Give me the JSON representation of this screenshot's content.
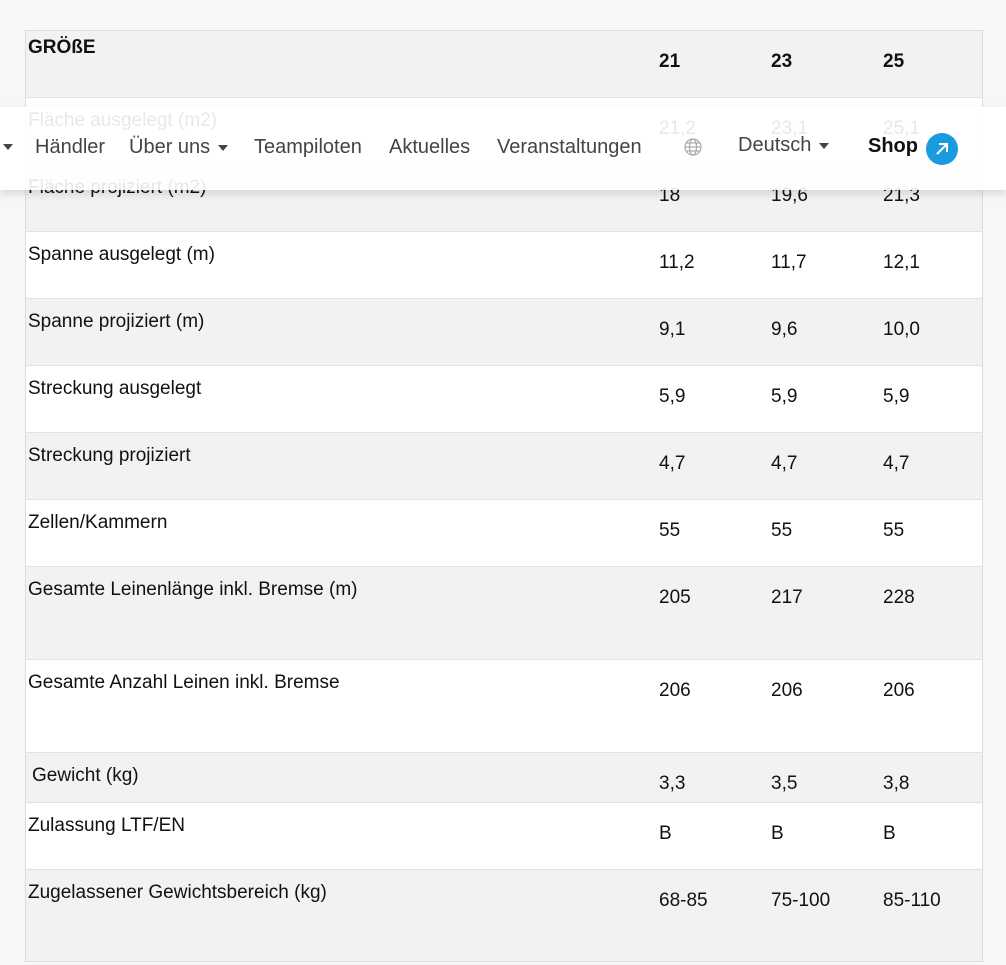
{
  "table": {
    "header": [
      "GRÖßE",
      "21",
      "23",
      "25"
    ],
    "rows": [
      [
        "Fläche ausgelegt (m2)",
        "21,2",
        "23,1",
        "25,1"
      ],
      [
        "Fläche projiziert (m2)",
        "18",
        "19,6",
        "21,3"
      ],
      [
        "Spanne ausgelegt (m)",
        "11,2",
        "11,7",
        "12,1"
      ],
      [
        "Spanne projiziert (m)",
        "9,1",
        "9,6",
        "10,0"
      ],
      [
        "Streckung ausgelegt",
        "5,9",
        "5,9",
        "5,9"
      ],
      [
        "Streckung projiziert",
        "4,7",
        "4,7",
        "4,7"
      ],
      [
        "Zellen/Kammern",
        "55",
        "55",
        "55"
      ],
      [
        "Gesamte Leinenlänge inkl. Bremse (m)",
        "205",
        "217",
        "228"
      ],
      [
        "Gesamte Anzahl Leinen inkl. Bremse",
        "206",
        "206",
        "206"
      ],
      [
        "Gewicht (kg)",
        "3,3",
        "3,5",
        "3,8"
      ],
      [
        "Zulassung LTF/EN",
        "B",
        "B",
        "B"
      ],
      [
        "Zugelassener Gewichtsbereich (kg)",
        "68-85",
        "75-100",
        "85-110"
      ]
    ]
  },
  "nav": {
    "items": [
      "Händler",
      "Über uns",
      "Teampiloten",
      "Aktuelles",
      "Veranstaltungen"
    ],
    "language": "Deutsch",
    "shop": "Shop"
  }
}
